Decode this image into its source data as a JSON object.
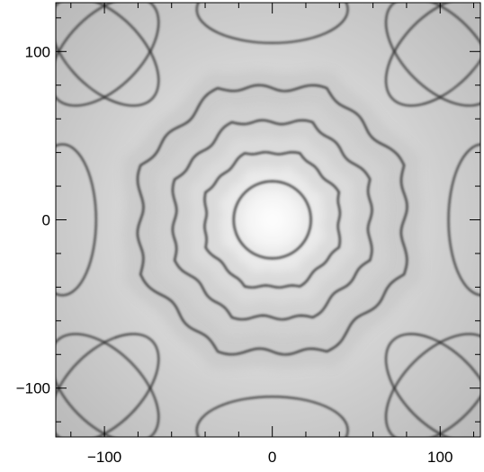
{
  "chart_data": {
    "type": "heatmap",
    "title": "",
    "xlabel": "",
    "ylabel": "",
    "xlim": [
      -129,
      124
    ],
    "ylim": [
      -129,
      129
    ],
    "x_ticks": [
      -100,
      0,
      100
    ],
    "x_tick_labels": [
      "−100",
      "0",
      "100"
    ],
    "y_ticks": [
      -100,
      0,
      100
    ],
    "y_tick_labels": [
      "−100",
      "0",
      "100"
    ],
    "x_minor_step": 20,
    "y_minor_step": 20,
    "colormap": "grayscale",
    "grid": false,
    "pattern": {
      "description_symmetry": 8,
      "center": [
        0,
        0
      ],
      "ring_radii": [
        23,
        43,
        63,
        85,
        107
      ],
      "central_value": "white",
      "contour_color": "#303030"
    }
  }
}
